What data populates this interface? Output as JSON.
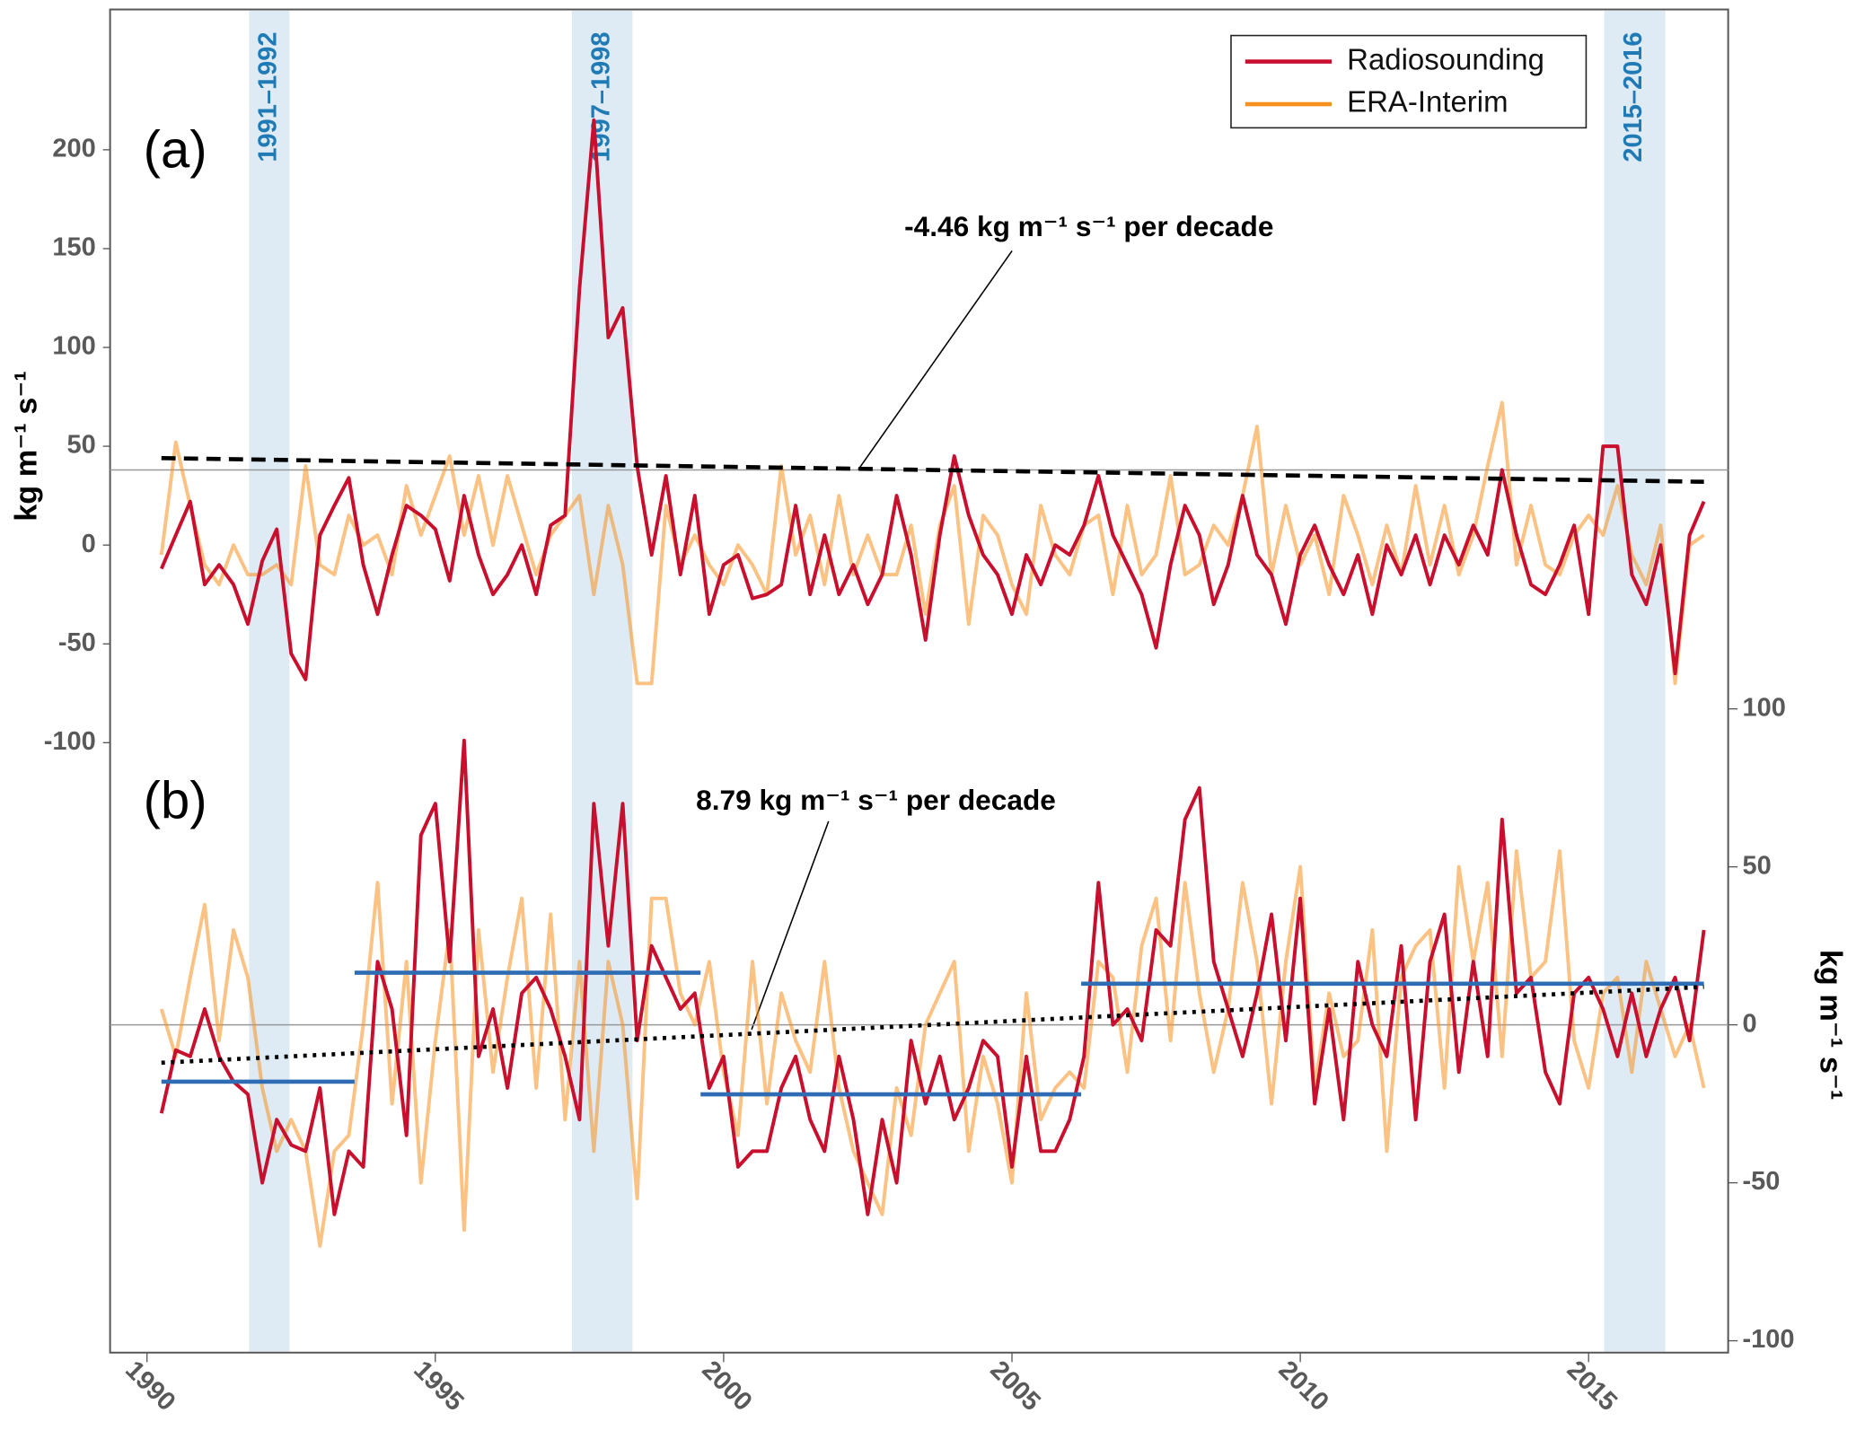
{
  "chart_data": [
    {
      "type": "line",
      "panel_label": "(a)",
      "y_label": "kg m⁻¹ s⁻¹",
      "annotation": "-4.46 kg m⁻¹ s⁻¹ per decade",
      "xlim": [
        1989.36,
        2017.42
      ],
      "ylim": [
        -120,
        271
      ],
      "yticks": [
        -100,
        -50,
        0,
        50,
        100,
        150,
        200
      ],
      "legend": "upper right",
      "highlights": [
        {
          "label": "1991–1992",
          "x": [
            1991.77,
            1992.47
          ]
        },
        {
          "label": "1997–1998",
          "x": [
            1997.37,
            1998.42
          ]
        },
        {
          "label": "2015–2016",
          "x": [
            2015.27,
            2016.33
          ]
        }
      ],
      "reference_line": 38,
      "trend": {
        "x": [
          1990.25,
          2017.0
        ],
        "values": [
          44,
          32
        ]
      },
      "x": [
        1990.25,
        1990.5,
        1990.75,
        1991,
        1991.25,
        1991.5,
        1991.75,
        1992,
        1992.25,
        1992.5,
        1992.75,
        1993,
        1993.25,
        1993.5,
        1993.75,
        1994,
        1994.25,
        1994.5,
        1994.75,
        1995,
        1995.25,
        1995.5,
        1995.75,
        1996,
        1996.25,
        1996.5,
        1996.75,
        1997,
        1997.25,
        1997.5,
        1997.75,
        1998,
        1998.25,
        1998.5,
        1998.75,
        1999,
        1999.25,
        1999.5,
        1999.75,
        2000,
        2000.25,
        2000.5,
        2000.75,
        2001,
        2001.25,
        2001.5,
        2001.75,
        2002,
        2002.25,
        2002.5,
        2002.75,
        2003,
        2003.25,
        2003.5,
        2003.75,
        2004,
        2004.25,
        2004.5,
        2004.75,
        2005,
        2005.25,
        2005.5,
        2005.75,
        2006,
        2006.25,
        2006.5,
        2006.75,
        2007,
        2007.25,
        2007.5,
        2007.75,
        2008,
        2008.25,
        2008.5,
        2008.75,
        2009,
        2009.25,
        2009.5,
        2009.75,
        2010,
        2010.25,
        2010.5,
        2010.75,
        2011,
        2011.25,
        2011.5,
        2011.75,
        2012,
        2012.25,
        2012.5,
        2012.75,
        2013,
        2013.25,
        2013.5,
        2013.75,
        2014,
        2014.25,
        2014.5,
        2014.75,
        2015,
        2015.25,
        2015.5,
        2015.75,
        2016,
        2016.25,
        2016.5,
        2016.75,
        2017
      ],
      "series": [
        {
          "name": "Radiosounding",
          "color": "#c8102e",
          "values": [
            -12,
            5,
            22,
            -20,
            -10,
            -20,
            -40,
            -8,
            8,
            -55,
            -68,
            5,
            20,
            34,
            -10,
            -35,
            -5,
            20,
            15,
            8,
            -18,
            25,
            -5,
            -25,
            -15,
            0,
            -25,
            10,
            15,
            130,
            215,
            105,
            120,
            40,
            -5,
            35,
            -15,
            25,
            -35,
            -10,
            -5,
            -27,
            -25,
            -20,
            20,
            -25,
            5,
            -25,
            -10,
            -30,
            -15,
            25,
            -5,
            -48,
            5,
            45,
            15,
            -5,
            -15,
            -35,
            -5,
            -20,
            0,
            -5,
            10,
            35,
            5,
            -10,
            -25,
            -52,
            -10,
            20,
            5,
            -30,
            -10,
            25,
            -5,
            -15,
            -40,
            -5,
            10,
            -10,
            -25,
            -5,
            -35,
            0,
            -15,
            5,
            -20,
            5,
            -10,
            10,
            -5,
            38,
            5,
            -20,
            -25,
            -10,
            10,
            -35,
            50,
            50,
            -15,
            -30,
            0,
            -65,
            5,
            22
          ]
        },
        {
          "name": "ERA-Interim",
          "color": "#f7901e",
          "values": [
            -5,
            52,
            20,
            -10,
            -20,
            0,
            -15,
            -15,
            -10,
            -20,
            40,
            -10,
            -15,
            15,
            0,
            5,
            -15,
            30,
            5,
            25,
            45,
            5,
            35,
            0,
            35,
            10,
            -15,
            5,
            15,
            25,
            -25,
            20,
            -10,
            -70,
            -70,
            20,
            -10,
            5,
            -10,
            -20,
            0,
            -10,
            -25,
            40,
            -5,
            15,
            -20,
            25,
            -15,
            5,
            -15,
            -15,
            10,
            -35,
            10,
            30,
            -40,
            15,
            5,
            -20,
            -35,
            20,
            -5,
            -15,
            10,
            15,
            -25,
            20,
            -15,
            -5,
            35,
            -15,
            -10,
            10,
            0,
            25,
            60,
            -15,
            20,
            -10,
            5,
            -25,
            25,
            5,
            -20,
            10,
            -15,
            30,
            -10,
            20,
            -15,
            5,
            40,
            72,
            -10,
            20,
            -10,
            -15,
            5,
            15,
            5,
            30,
            -5,
            -20,
            10,
            -70,
            0,
            5
          ]
        }
      ]
    },
    {
      "type": "line",
      "panel_label": "(b)",
      "y_label": "kg m⁻¹ s⁻¹",
      "annotation": "8.79 kg m⁻¹ s⁻¹ per decade",
      "xlim": [
        1989.36,
        2017.42
      ],
      "ylim": [
        -103,
        103
      ],
      "xticks": [
        1990,
        1995,
        2000,
        2005,
        2010,
        2015
      ],
      "yticks": [
        -100,
        -50,
        0,
        50,
        100
      ],
      "reference_line": 0,
      "trend": {
        "x": [
          1990.25,
          2017.0
        ],
        "values": [
          -12,
          12
        ]
      },
      "segments_color": "#2e6db4",
      "segments": [
        {
          "x": [
            1990.25,
            1993.6
          ],
          "value": -18
        },
        {
          "x": [
            1993.6,
            1999.6
          ],
          "value": 16.5
        },
        {
          "x": [
            1999.6,
            2006.2
          ],
          "value": -22
        },
        {
          "x": [
            2006.2,
            2017.0
          ],
          "value": 13
        }
      ],
      "x": [
        1990.25,
        1990.5,
        1990.75,
        1991,
        1991.25,
        1991.5,
        1991.75,
        1992,
        1992.25,
        1992.5,
        1992.75,
        1993,
        1993.25,
        1993.5,
        1993.75,
        1994,
        1994.25,
        1994.5,
        1994.75,
        1995,
        1995.25,
        1995.5,
        1995.75,
        1996,
        1996.25,
        1996.5,
        1996.75,
        1997,
        1997.25,
        1997.5,
        1997.75,
        1998,
        1998.25,
        1998.5,
        1998.75,
        1999,
        1999.25,
        1999.5,
        1999.75,
        2000,
        2000.25,
        2000.5,
        2000.75,
        2001,
        2001.25,
        2001.5,
        2001.75,
        2002,
        2002.25,
        2002.5,
        2002.75,
        2003,
        2003.25,
        2003.5,
        2003.75,
        2004,
        2004.25,
        2004.5,
        2004.75,
        2005,
        2005.25,
        2005.5,
        2005.75,
        2006,
        2006.25,
        2006.5,
        2006.75,
        2007,
        2007.25,
        2007.5,
        2007.75,
        2008,
        2008.25,
        2008.5,
        2008.75,
        2009,
        2009.25,
        2009.5,
        2009.75,
        2010,
        2010.25,
        2010.5,
        2010.75,
        2011,
        2011.25,
        2011.5,
        2011.75,
        2012,
        2012.25,
        2012.5,
        2012.75,
        2013,
        2013.25,
        2013.5,
        2013.75,
        2014,
        2014.25,
        2014.5,
        2014.75,
        2015,
        2015.25,
        2015.5,
        2015.75,
        2016,
        2016.25,
        2016.5,
        2016.75,
        2017
      ],
      "series": [
        {
          "name": "Radiosounding",
          "color": "#c8102e",
          "values": [
            -28,
            -8,
            -10,
            5,
            -10,
            -18,
            -22,
            -50,
            -30,
            -38,
            -40,
            -20,
            -60,
            -40,
            -45,
            20,
            5,
            -35,
            60,
            70,
            20,
            90,
            -10,
            5,
            -20,
            10,
            15,
            5,
            -10,
            -30,
            70,
            25,
            70,
            -5,
            25,
            15,
            5,
            10,
            -20,
            -10,
            -45,
            -40,
            -40,
            -20,
            -10,
            -30,
            -40,
            -10,
            -30,
            -60,
            -30,
            -50,
            -5,
            -25,
            -10,
            -30,
            -20,
            -5,
            -10,
            -45,
            -10,
            -40,
            -40,
            -30,
            -10,
            45,
            0,
            5,
            -5,
            30,
            25,
            65,
            75,
            20,
            5,
            -10,
            10,
            35,
            -5,
            40,
            -25,
            5,
            -30,
            20,
            0,
            -10,
            25,
            -30,
            20,
            35,
            -15,
            20,
            -10,
            65,
            10,
            15,
            -15,
            -25,
            10,
            15,
            5,
            -10,
            10,
            -10,
            5,
            15,
            -5,
            30
          ]
        },
        {
          "name": "ERA-Interim",
          "color": "#f7901e",
          "values": [
            5,
            -10,
            15,
            38,
            -5,
            30,
            15,
            -20,
            -40,
            -30,
            -40,
            -70,
            -40,
            -35,
            0,
            45,
            -25,
            20,
            -50,
            -5,
            30,
            -65,
            30,
            -15,
            15,
            40,
            -20,
            35,
            -30,
            20,
            -40,
            20,
            0,
            -55,
            40,
            40,
            10,
            0,
            20,
            -15,
            -35,
            20,
            -25,
            10,
            -5,
            -15,
            20,
            -20,
            -40,
            -50,
            -60,
            -20,
            -35,
            0,
            10,
            20,
            -40,
            -10,
            -25,
            -50,
            10,
            -30,
            -20,
            -15,
            -20,
            20,
            15,
            -15,
            25,
            40,
            -5,
            45,
            10,
            -15,
            5,
            45,
            20,
            -25,
            20,
            50,
            -20,
            10,
            -10,
            -5,
            30,
            -40,
            15,
            25,
            30,
            -20,
            50,
            20,
            45,
            -10,
            55,
            15,
            20,
            55,
            -5,
            -20,
            10,
            15,
            -15,
            20,
            5,
            -10,
            0,
            -20
          ]
        }
      ]
    }
  ]
}
